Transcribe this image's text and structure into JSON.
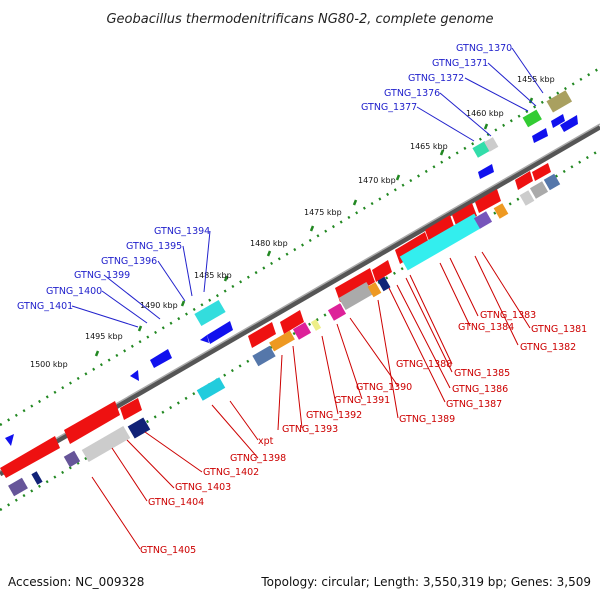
{
  "title": "Geobacillus thermodenitrificans NG80-2, complete genome",
  "footer": {
    "accession": "Accession: NC_009328",
    "summary": "Topology: circular; Length: 3,550,319 bp; Genes: 3,509"
  },
  "scale_labels": [
    "1455 kbp",
    "1460 kbp",
    "1465 kbp",
    "1470 kbp",
    "1475 kbp",
    "1480 kbp",
    "1485 kbp",
    "1490 kbp",
    "1495 kbp",
    "1500 kbp"
  ],
  "gene_labels_top": [
    "GTNG_1370",
    "GTNG_1371",
    "GTNG_1372",
    "GTNG_1376",
    "GTNG_1377",
    "GTNG_1394",
    "GTNG_1395",
    "GTNG_1396",
    "GTNG_1399",
    "GTNG_1400",
    "GTNG_1401"
  ],
  "gene_labels_bottom": [
    "GTNG_1383",
    "GTNG_1384",
    "GTNG_1381",
    "GTNG_1382",
    "GTNG_1388",
    "GTNG_1385",
    "GTNG_1386",
    "GTNG_1387",
    "GTNG_1390",
    "GTNG_1391",
    "GTNG_1389",
    "GTNG_1392",
    "GTNG_1393",
    "xpt",
    "GTNG_1398",
    "GTNG_1402",
    "GTNG_1403",
    "GTNG_1404",
    "GTNG_1405"
  ],
  "colors": {
    "forward_cds": "#ee1111",
    "reverse_cds": "#1111ee",
    "backbone": "#777777",
    "tick": "#228822",
    "label_top": "#2222cc",
    "label_bottom": "#cc0000"
  }
}
